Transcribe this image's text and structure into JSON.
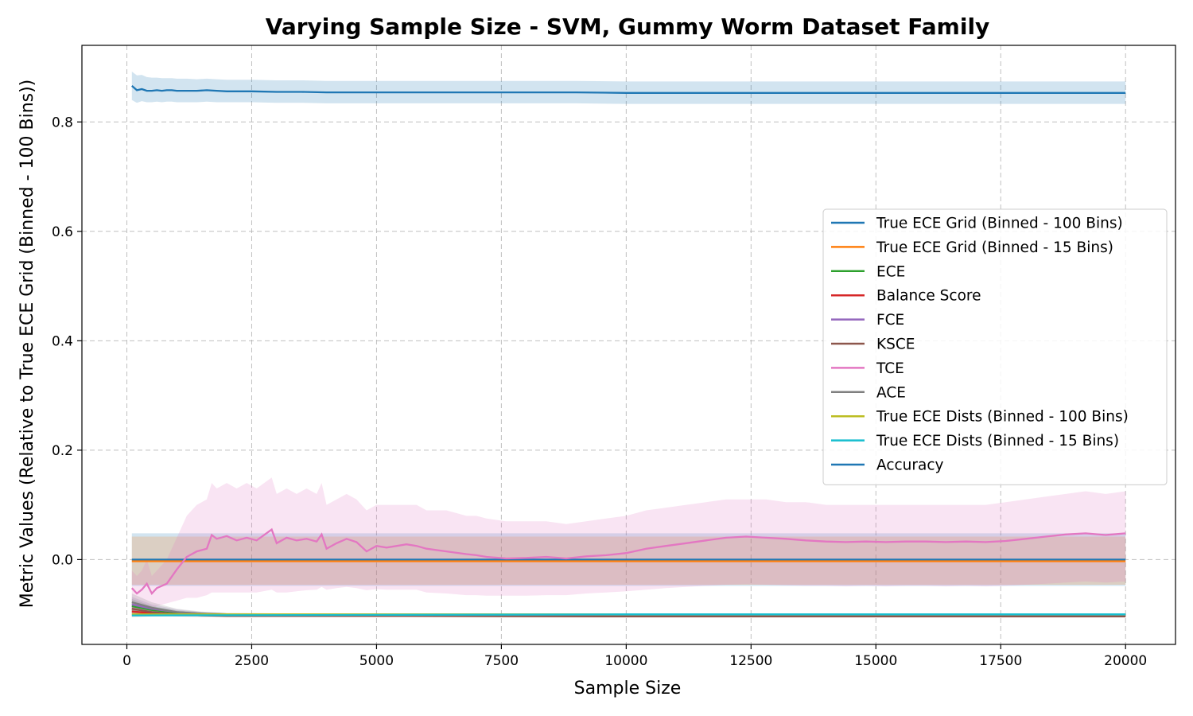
{
  "chart_data": {
    "type": "line",
    "title": "Varying Sample Size - SVM, Gummy Worm Dataset Family",
    "xlabel": "Sample Size",
    "ylabel": "Metric Values (Relative to True ECE Grid (Binned - 100 Bins))",
    "xlim": [
      -900,
      21000
    ],
    "ylim": [
      -0.155,
      0.94
    ],
    "xticks": [
      0,
      2500,
      5000,
      7500,
      10000,
      12500,
      15000,
      17500,
      20000
    ],
    "xtick_labels": [
      "0",
      "2500",
      "5000",
      "7500",
      "10000",
      "12500",
      "15000",
      "17500",
      "20000"
    ],
    "yticks": [
      0.0,
      0.2,
      0.4,
      0.6,
      0.8
    ],
    "ytick_labels": [
      "0.0",
      "0.2",
      "0.4",
      "0.6",
      "0.8"
    ],
    "grid": true,
    "legend_position": "center-right",
    "series": [
      {
        "name": "True ECE Grid (Binned - 100 Bins)",
        "color": "#1f77b4",
        "x": [
          100,
          20000
        ],
        "y": [
          0.0,
          0.0
        ],
        "band_lower": [
          -0.048,
          -0.048
        ],
        "band_upper": [
          0.048,
          0.048
        ]
      },
      {
        "name": "True ECE Grid (Binned - 15 Bins)",
        "color": "#ff7f0e",
        "x": [
          100,
          20000
        ],
        "y": [
          -0.003,
          -0.003
        ],
        "band_lower": [
          -0.046,
          -0.046
        ],
        "band_upper": [
          0.042,
          0.042
        ]
      },
      {
        "name": "ECE",
        "color": "#2ca02c",
        "x": [
          100,
          500,
          1000,
          1500,
          2000,
          5000,
          10000,
          15000,
          20000
        ],
        "y": [
          -0.085,
          -0.092,
          -0.097,
          -0.099,
          -0.1,
          -0.101,
          -0.101,
          -0.101,
          -0.101
        ],
        "band_lower": [
          -0.098,
          -0.1,
          -0.101,
          -0.102,
          -0.102,
          -0.102,
          -0.102,
          -0.102,
          -0.102
        ],
        "band_upper": [
          -0.072,
          -0.085,
          -0.093,
          -0.096,
          -0.098,
          -0.099,
          -0.1,
          -0.1,
          -0.1
        ]
      },
      {
        "name": "Balance Score",
        "color": "#d62728",
        "x": [
          100,
          500,
          1000,
          1500,
          2000,
          5000,
          10000,
          15000,
          20000
        ],
        "y": [
          -0.095,
          -0.098,
          -0.1,
          -0.101,
          -0.102,
          -0.102,
          -0.103,
          -0.103,
          -0.103
        ],
        "band_lower": [
          -0.105,
          -0.104,
          -0.104,
          -0.104,
          -0.104,
          -0.104,
          -0.104,
          -0.104,
          -0.104
        ],
        "band_upper": [
          -0.085,
          -0.092,
          -0.096,
          -0.098,
          -0.099,
          -0.1,
          -0.101,
          -0.101,
          -0.101
        ]
      },
      {
        "name": "FCE",
        "color": "#9467bd",
        "x": [
          100,
          500,
          1000,
          1500,
          2000,
          5000,
          10000,
          15000,
          20000
        ],
        "y": [
          -0.082,
          -0.09,
          -0.096,
          -0.099,
          -0.1,
          -0.101,
          -0.101,
          -0.101,
          -0.101
        ],
        "band_lower": [
          -0.096,
          -0.099,
          -0.101,
          -0.102,
          -0.102,
          -0.102,
          -0.102,
          -0.102,
          -0.102
        ],
        "band_upper": [
          -0.068,
          -0.082,
          -0.091,
          -0.096,
          -0.098,
          -0.099,
          -0.1,
          -0.1,
          -0.1
        ]
      },
      {
        "name": "KSCE",
        "color": "#8c564b",
        "x": [
          100,
          500,
          1000,
          1500,
          2000,
          5000,
          10000,
          15000,
          20000
        ],
        "y": [
          -0.09,
          -0.096,
          -0.1,
          -0.102,
          -0.103,
          -0.103,
          -0.104,
          -0.104,
          -0.104
        ],
        "band_lower": [
          -0.1,
          -0.102,
          -0.104,
          -0.105,
          -0.105,
          -0.105,
          -0.105,
          -0.105,
          -0.105
        ],
        "band_upper": [
          -0.08,
          -0.09,
          -0.096,
          -0.099,
          -0.101,
          -0.101,
          -0.102,
          -0.102,
          -0.102
        ]
      },
      {
        "name": "TCE",
        "color": "#e377c2",
        "x": [
          100,
          200,
          300,
          400,
          500,
          600,
          800,
          1000,
          1200,
          1400,
          1600,
          1700,
          1800,
          2000,
          2200,
          2400,
          2600,
          2900,
          3000,
          3200,
          3400,
          3600,
          3800,
          3900,
          4000,
          4200,
          4400,
          4600,
          4800,
          5000,
          5200,
          5600,
          5800,
          6000,
          6400,
          6800,
          7000,
          7200,
          7600,
          8000,
          8400,
          8800,
          9200,
          9600,
          10000,
          10400,
          10800,
          11200,
          11600,
          12000,
          12400,
          12800,
          13200,
          13600,
          14000,
          14400,
          14800,
          15200,
          15600,
          16000,
          16400,
          16800,
          17200,
          17600,
          18000,
          18400,
          18800,
          19200,
          19600,
          20000
        ],
        "y": [
          -0.052,
          -0.062,
          -0.055,
          -0.044,
          -0.062,
          -0.052,
          -0.044,
          -0.018,
          0.005,
          0.015,
          0.02,
          0.045,
          0.038,
          0.043,
          0.035,
          0.04,
          0.035,
          0.055,
          0.03,
          0.04,
          0.035,
          0.038,
          0.033,
          0.046,
          0.02,
          0.03,
          0.038,
          0.032,
          0.015,
          0.025,
          0.022,
          0.028,
          0.025,
          0.02,
          0.015,
          0.01,
          0.008,
          0.005,
          0.002,
          0.003,
          0.005,
          0.002,
          0.006,
          0.008,
          0.012,
          0.02,
          0.025,
          0.03,
          0.035,
          0.04,
          0.042,
          0.04,
          0.038,
          0.035,
          0.033,
          0.032,
          0.033,
          0.032,
          0.033,
          0.033,
          0.032,
          0.033,
          0.032,
          0.034,
          0.038,
          0.042,
          0.046,
          0.048,
          0.045,
          0.048
        ],
        "band_lower": [
          -0.09,
          -0.09,
          -0.09,
          -0.09,
          -0.09,
          -0.085,
          -0.08,
          -0.075,
          -0.07,
          -0.07,
          -0.065,
          -0.06,
          -0.06,
          -0.06,
          -0.06,
          -0.06,
          -0.06,
          -0.055,
          -0.06,
          -0.06,
          -0.058,
          -0.056,
          -0.055,
          -0.05,
          -0.055,
          -0.052,
          -0.05,
          -0.052,
          -0.056,
          -0.054,
          -0.055,
          -0.055,
          -0.055,
          -0.06,
          -0.062,
          -0.065,
          -0.065,
          -0.066,
          -0.066,
          -0.066,
          -0.065,
          -0.065,
          -0.062,
          -0.06,
          -0.058,
          -0.055,
          -0.052,
          -0.05,
          -0.048,
          -0.046,
          -0.045,
          -0.046,
          -0.047,
          -0.048,
          -0.048,
          -0.049,
          -0.048,
          -0.049,
          -0.048,
          -0.048,
          -0.049,
          -0.048,
          -0.049,
          -0.048,
          -0.046,
          -0.044,
          -0.042,
          -0.04,
          -0.042,
          -0.04
        ],
        "band_upper": [
          -0.02,
          -0.03,
          -0.02,
          0.0,
          -0.03,
          -0.02,
          0.0,
          0.04,
          0.08,
          0.1,
          0.11,
          0.14,
          0.13,
          0.14,
          0.13,
          0.14,
          0.13,
          0.15,
          0.12,
          0.13,
          0.12,
          0.13,
          0.12,
          0.14,
          0.1,
          0.11,
          0.12,
          0.11,
          0.09,
          0.1,
          0.1,
          0.1,
          0.1,
          0.09,
          0.09,
          0.08,
          0.08,
          0.075,
          0.07,
          0.07,
          0.07,
          0.065,
          0.07,
          0.075,
          0.08,
          0.09,
          0.095,
          0.1,
          0.105,
          0.11,
          0.11,
          0.11,
          0.105,
          0.105,
          0.1,
          0.1,
          0.1,
          0.1,
          0.1,
          0.1,
          0.1,
          0.1,
          0.1,
          0.105,
          0.11,
          0.115,
          0.12,
          0.125,
          0.12,
          0.125
        ]
      },
      {
        "name": "ACE",
        "color": "#7f7f7f",
        "x": [
          100,
          500,
          1000,
          1500,
          2000,
          5000,
          10000,
          15000,
          20000
        ],
        "y": [
          -0.078,
          -0.088,
          -0.096,
          -0.099,
          -0.1,
          -0.101,
          -0.101,
          -0.101,
          -0.101
        ],
        "band_lower": [
          -0.094,
          -0.098,
          -0.101,
          -0.102,
          -0.102,
          -0.102,
          -0.102,
          -0.102,
          -0.102
        ],
        "band_upper": [
          -0.062,
          -0.078,
          -0.09,
          -0.095,
          -0.098,
          -0.099,
          -0.1,
          -0.1,
          -0.1
        ]
      },
      {
        "name": "True ECE Dists (Binned - 100 Bins)",
        "color": "#bcbd22",
        "x": [
          100,
          5000,
          10000,
          15000,
          20000
        ],
        "y": [
          -0.1,
          -0.1,
          -0.1,
          -0.1,
          -0.1
        ],
        "band_lower": [
          -0.101,
          -0.101,
          -0.101,
          -0.101,
          -0.101
        ],
        "band_upper": [
          -0.099,
          -0.099,
          -0.099,
          -0.099,
          -0.099
        ]
      },
      {
        "name": "True ECE Dists (Binned - 15 Bins)",
        "color": "#17becf",
        "x": [
          100,
          5000,
          10000,
          15000,
          20000
        ],
        "y": [
          -0.102,
          -0.101,
          -0.1,
          -0.1,
          -0.1
        ],
        "band_lower": [
          -0.103,
          -0.102,
          -0.101,
          -0.101,
          -0.101
        ],
        "band_upper": [
          -0.101,
          -0.1,
          -0.099,
          -0.099,
          -0.099
        ]
      },
      {
        "name": "Accuracy",
        "color": "#1f77b4",
        "x": [
          100,
          200,
          300,
          400,
          500,
          600,
          700,
          800,
          900,
          1000,
          1200,
          1400,
          1600,
          1800,
          2000,
          2500,
          3000,
          3500,
          4000,
          4500,
          5000,
          5500,
          6000,
          6500,
          7000,
          7500,
          8000,
          9000,
          10000,
          11000,
          12000,
          13000,
          14000,
          15000,
          16000,
          17000,
          18000,
          19000,
          20000
        ],
        "y": [
          0.866,
          0.858,
          0.86,
          0.857,
          0.857,
          0.858,
          0.857,
          0.858,
          0.858,
          0.857,
          0.857,
          0.857,
          0.858,
          0.857,
          0.856,
          0.856,
          0.855,
          0.855,
          0.854,
          0.854,
          0.854,
          0.854,
          0.854,
          0.854,
          0.854,
          0.854,
          0.854,
          0.854,
          0.853,
          0.853,
          0.853,
          0.853,
          0.853,
          0.853,
          0.853,
          0.853,
          0.853,
          0.853,
          0.853
        ],
        "band_lower": [
          0.84,
          0.835,
          0.838,
          0.836,
          0.836,
          0.837,
          0.836,
          0.837,
          0.837,
          0.836,
          0.836,
          0.836,
          0.837,
          0.836,
          0.836,
          0.836,
          0.835,
          0.835,
          0.834,
          0.834,
          0.834,
          0.834,
          0.834,
          0.834,
          0.834,
          0.834,
          0.834,
          0.834,
          0.833,
          0.833,
          0.833,
          0.833,
          0.833,
          0.833,
          0.833,
          0.833,
          0.833,
          0.833,
          0.833
        ],
        "band_upper": [
          0.892,
          0.885,
          0.886,
          0.882,
          0.881,
          0.881,
          0.88,
          0.88,
          0.88,
          0.879,
          0.879,
          0.878,
          0.879,
          0.878,
          0.877,
          0.877,
          0.876,
          0.876,
          0.875,
          0.875,
          0.875,
          0.875,
          0.875,
          0.875,
          0.875,
          0.875,
          0.875,
          0.875,
          0.874,
          0.874,
          0.874,
          0.874,
          0.874,
          0.874,
          0.874,
          0.874,
          0.874,
          0.874,
          0.874
        ]
      }
    ]
  }
}
